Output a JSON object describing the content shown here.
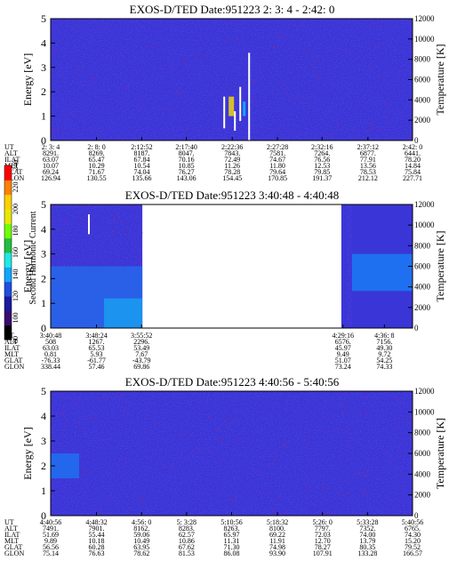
{
  "colorbar": {
    "label": "Second Harmonic Current",
    "ticks": [
      "80",
      "100",
      "120",
      "140",
      "160",
      "180",
      "200",
      "220",
      "240"
    ],
    "colors": [
      "#000000",
      "#3a0a6e",
      "#1a1aa0",
      "#1f4fe0",
      "#10a6ff",
      "#20e8e8",
      "#20c040",
      "#70ff00",
      "#e8e800",
      "#ffd000",
      "#ff8000",
      "#ff0000"
    ]
  },
  "chart_data": [
    {
      "type": "heatmap",
      "title": "EXOS-D/TED",
      "date_label": "Date:951223",
      "time_range": "2: 3: 4 - 2:42: 0",
      "ylabel": "Energy [eV]",
      "ylabel_right": "Temperature [K]",
      "ylim": [
        0,
        5
      ],
      "y_ticks": [
        "0",
        "1",
        "2",
        "3",
        "4",
        "5"
      ],
      "y2lim": [
        0,
        12000
      ],
      "y2_ticks": [
        "0",
        "2000",
        "4000",
        "6000",
        "8000",
        "10000",
        "12000"
      ],
      "background_level": 120,
      "gaps": [],
      "row_labels": [
        "UT",
        "ALT",
        "ILAT",
        "MLT",
        "GLAT",
        "GLON"
      ],
      "columns": [
        {
          "ut": "2: 3: 4",
          "alt": "8291.",
          "ilat": "63.07",
          "mlt": "10.07",
          "glat": "69.24",
          "glon": "126.94"
        },
        {
          "ut": "2: 8: 0",
          "alt": "8269.",
          "ilat": "65.47",
          "mlt": "10.29",
          "glat": "71.67",
          "glon": "130.55"
        },
        {
          "ut": "2:12:52",
          "alt": "8187.",
          "ilat": "67.84",
          "mlt": "10.54",
          "glat": "74.04",
          "glon": "135.66"
        },
        {
          "ut": "2:17:40",
          "alt": "8047.",
          "ilat": "70.16",
          "mlt": "10.85",
          "glat": "76.27",
          "glon": "143.06"
        },
        {
          "ut": "2:22:36",
          "alt": "7843.",
          "ilat": "72.49",
          "mlt": "11.26",
          "glat": "78.28",
          "glon": "154.45"
        },
        {
          "ut": "2:27:28",
          "alt": "7581.",
          "ilat": "74.67",
          "mlt": "11.80",
          "glat": "79.64",
          "glon": "170.85"
        },
        {
          "ut": "2:32:16",
          "alt": "7264.",
          "ilat": "76.56",
          "mlt": "12.53",
          "glat": "79.85",
          "glon": "191.37"
        },
        {
          "ut": "2:37:12",
          "alt": "6877.",
          "ilat": "77.91",
          "mlt": "13.56",
          "glat": "78.53",
          "glon": "212.12"
        },
        {
          "ut": "2:42: 0",
          "alt": "6441.",
          "ilat": "78.20",
          "mlt": "14.84",
          "glat": "75.84",
          "glon": "227.71"
        }
      ]
    },
    {
      "type": "heatmap",
      "title": "EXOS-D/TED",
      "date_label": "Date:951223",
      "time_range": "3:40:48 - 4:40:48",
      "ylabel": "Energy [eV]",
      "ylabel_right": "Temperature [K]",
      "ylim": [
        0,
        5
      ],
      "y_ticks": [
        "0",
        "1",
        "2",
        "3",
        "4",
        "5"
      ],
      "y2lim": [
        0,
        12000
      ],
      "y2_ticks": [
        "0",
        "2000",
        "4000",
        "6000",
        "8000",
        "10000",
        "12000"
      ],
      "background_level": 120,
      "gaps": [
        [
          "3:56:00",
          "4:29:00"
        ]
      ],
      "row_labels": [
        "UT",
        "ALT",
        "ILAT",
        "MLT",
        "GLAT",
        "GLON"
      ],
      "columns": [
        {
          "ut": "3:40:48",
          "alt": "508",
          "ilat": "63.03",
          "mlt": "0.81",
          "glat": "-76.33",
          "glon": "338.44"
        },
        {
          "ut": "3:48:24",
          "alt": "1267.",
          "ilat": "65.53",
          "mlt": "5.93",
          "glat": "-61.77",
          "glon": "57.46"
        },
        {
          "ut": "3:55:52",
          "alt": "2296.",
          "ilat": "53.49",
          "mlt": "7.67",
          "glat": "-43.79",
          "glon": "69.86"
        },
        {
          "ut": "4:29:16",
          "alt": "6576.",
          "ilat": "45.97",
          "mlt": "9.49",
          "glat": "51.07",
          "glon": "73.24"
        },
        {
          "ut": "4:36: 8",
          "alt": "7156.",
          "ilat": "49.30",
          "mlt": "9.72",
          "glat": "54.25",
          "glon": "74.33"
        }
      ]
    },
    {
      "type": "heatmap",
      "title": "EXOS-D/TED",
      "date_label": "Date:951223",
      "time_range": "4:40:56 - 5:40:56",
      "ylabel": "Energy [eV]",
      "ylabel_right": "Temperature [K]",
      "ylim": [
        0,
        5
      ],
      "y_ticks": [
        "0",
        "1",
        "2",
        "3",
        "4",
        "5"
      ],
      "y2lim": [
        0,
        12000
      ],
      "y2_ticks": [
        "0",
        "2000",
        "4000",
        "6000",
        "8000",
        "10000",
        "12000"
      ],
      "background_level": 120,
      "gaps": [],
      "row_labels": [
        "UT",
        "ALT",
        "ILAT",
        "MLT",
        "GLAT",
        "GLON"
      ],
      "columns": [
        {
          "ut": "4:40:56",
          "alt": "7491.",
          "ilat": "51.69",
          "mlt": "9.89",
          "glat": "56.56",
          "glon": "75.14"
        },
        {
          "ut": "4:48:32",
          "alt": "7901.",
          "ilat": "55.44",
          "mlt": "10.18",
          "glat": "60.28",
          "glon": "76.63"
        },
        {
          "ut": "4:56: 0",
          "alt": "8162.",
          "ilat": "59.06",
          "mlt": "10.49",
          "glat": "63.95",
          "glon": "78.62"
        },
        {
          "ut": "5: 3:28",
          "alt": "8283.",
          "ilat": "62.57",
          "mlt": "10.86",
          "glat": "67.62",
          "glon": "81.53"
        },
        {
          "ut": "5:10:56",
          "alt": "8263.",
          "ilat": "65.97",
          "mlt": "11.31",
          "glat": "71.30",
          "glon": "86.08"
        },
        {
          "ut": "5:18:32",
          "alt": "8100.",
          "ilat": "69.22",
          "mlt": "11.91",
          "glat": "74.98",
          "glon": "93.90"
        },
        {
          "ut": "5:26: 0",
          "alt": "7797.",
          "ilat": "72.03",
          "mlt": "12.70",
          "glat": "78.27",
          "glon": "107.91"
        },
        {
          "ut": "5:33:28",
          "alt": "7352.",
          "ilat": "74.00",
          "mlt": "13.79",
          "glat": "80.35",
          "glon": "133.28"
        },
        {
          "ut": "5:40:56",
          "alt": "6765.",
          "ilat": "74.30",
          "mlt": "15.20",
          "glat": "79.52",
          "glon": "166.57"
        }
      ]
    }
  ]
}
